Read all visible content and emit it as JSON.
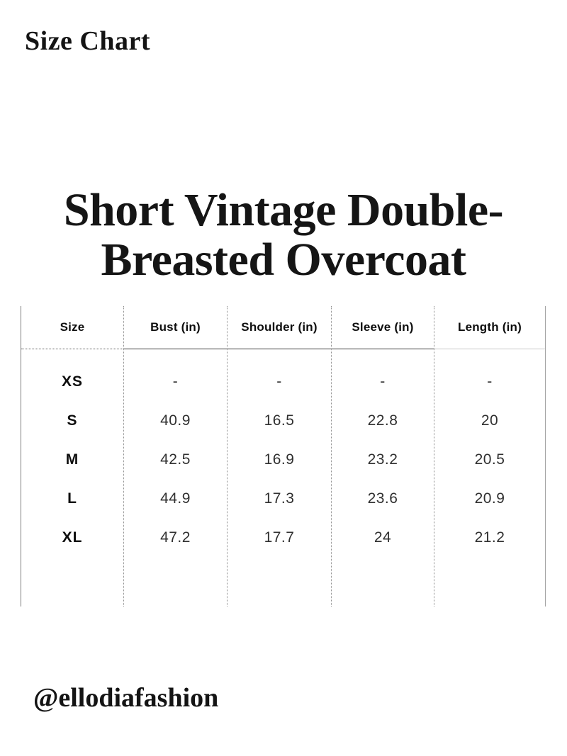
{
  "header": {
    "title": "Size Chart"
  },
  "product": {
    "title_line1": "Short Vintage Double-",
    "title_line2": "Breasted Overcoat"
  },
  "table": {
    "columns": [
      "Size",
      "Bust (in)",
      "Shoulder (in)",
      "Sleeve (in)",
      "Length (in)"
    ],
    "rows": [
      {
        "size": "XS",
        "values": [
          "-",
          "-",
          "-",
          "-"
        ]
      },
      {
        "size": "S",
        "values": [
          "40.9",
          "16.5",
          "22.8",
          "20"
        ]
      },
      {
        "size": "M",
        "values": [
          "42.5",
          "16.9",
          "23.2",
          "20.5"
        ]
      },
      {
        "size": "L",
        "values": [
          "44.9",
          "17.3",
          "23.6",
          "20.9"
        ]
      },
      {
        "size": "XL",
        "values": [
          "47.2",
          "17.7",
          "24",
          "21.2"
        ]
      }
    ]
  },
  "footer": {
    "handle": "@ellodiafashion"
  },
  "colors": {
    "background": "#ffffff",
    "text": "#141414",
    "value_text": "#303030",
    "solid_rule": "#3c3c3c",
    "light_rule": "#c6c6c6",
    "dotted_rule": "#8f8f8f"
  }
}
